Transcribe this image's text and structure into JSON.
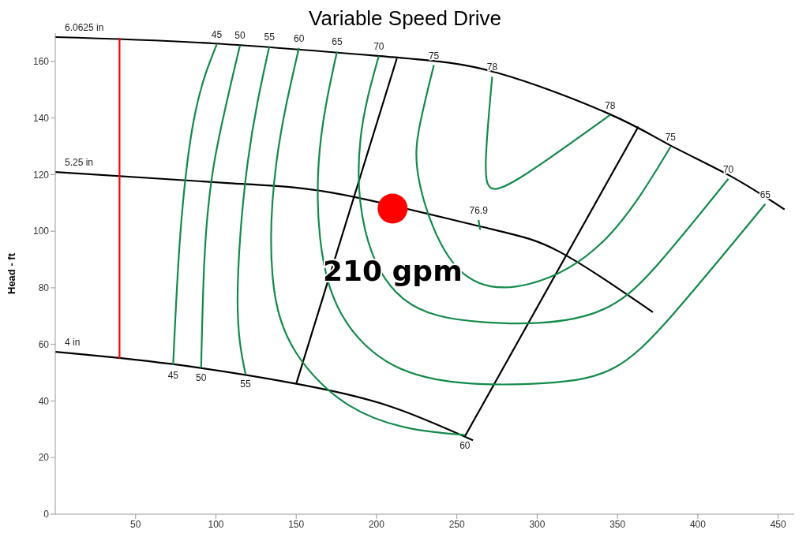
{
  "chart_data": {
    "type": "line",
    "title": "Variable Speed Drive",
    "ylabel": "Head - ft",
    "xlim": [
      0,
      460
    ],
    "ylim": [
      0,
      170
    ],
    "xticks": [
      50,
      100,
      150,
      200,
      250,
      300,
      350,
      400,
      450
    ],
    "yticks": [
      0,
      20,
      40,
      60,
      80,
      100,
      120,
      140,
      160
    ],
    "grid": false,
    "legend": false,
    "marker": "none",
    "line_style": "solid",
    "series": [
      {
        "color": "#000000",
        "x": [
          0,
          100,
          208,
          275,
          345,
          382,
          420,
          454
        ],
        "values": [
          168.6,
          166.3,
          161.6,
          156,
          141.4,
          130.6,
          119.6,
          107.7
        ]
      },
      {
        "color": "#000000",
        "x": [
          0,
          111,
          179,
          266,
          314,
          372
        ],
        "values": [
          120.9,
          116.9,
          112.9,
          101.5,
          92.7,
          71.4
        ]
      },
      {
        "color": "#000000",
        "x": [
          0,
          72,
          150,
          208,
          260
        ],
        "values": [
          57.4,
          53.1,
          46.1,
          38.2,
          26.1
        ]
      },
      {
        "color": "#ff0000",
        "x": [
          40,
          40
        ],
        "values": [
          55,
          168.3
        ]
      },
      {
        "color": "#000000",
        "x": [
          150,
          212.6
        ],
        "values": [
          46.1,
          161
        ]
      },
      {
        "color": "#000000",
        "x": [
          255,
          363
        ],
        "values": [
          27.5,
          137
        ]
      },
      {
        "color": "#138a4a",
        "x": [
          100.5,
          87,
          78,
          73.4
        ],
        "values": [
          166,
          141.5,
          100,
          52.8
        ]
      },
      {
        "color": "#138a4a",
        "x": [
          115,
          99,
          92.8,
          90.8
        ],
        "values": [
          165.7,
          124.4,
          89.4,
          51.7
        ]
      },
      {
        "color": "#138a4a",
        "x": [
          133.3,
          119.8,
          113.5,
          118.4
        ],
        "values": [
          165.4,
          124.4,
          76,
          49.6
        ]
      },
      {
        "color": "#138a4a",
        "x": [
          151.7,
          137.7,
          135.3,
          150,
          183.6,
          222,
          255
        ],
        "values": [
          164.8,
          124.4,
          84,
          57,
          38.2,
          30.2,
          28
        ]
      },
      {
        "color": "#138a4a",
        "x": [
          175.4,
          164,
          169,
          193,
          236.7,
          304,
          347.8,
          384.5,
          442
        ],
        "values": [
          163.5,
          124.4,
          84,
          59.8,
          47.7,
          46.3,
          51.7,
          70.6,
          109.6
        ]
      },
      {
        "color": "#138a4a",
        "x": [
          201.4,
          190,
          193,
          217,
          265.7,
          333,
          376.8,
          419
        ],
        "values": [
          161.9,
          132.5,
          100.2,
          76,
          67.9,
          70.6,
          89.4,
          118.5
        ]
      },
      {
        "color": "#138a4a",
        "x": [
          235.7,
          227,
          227,
          251,
          294.7,
          343,
          383
        ],
        "values": [
          158.7,
          137.7,
          116.4,
          86.7,
          81.3,
          97.5,
          129.8
        ]
      },
      {
        "color": "#138a4a",
        "x": [
          272,
          268,
          275,
          304,
          345.4
        ],
        "values": [
          154.6,
          124.4,
          115,
          124.4,
          141.1
        ]
      },
      {
        "color": "#138a4a",
        "x": [
          263.5,
          264.5
        ],
        "values": [
          104,
          100.5
        ]
      },
      {
        "type": "scatter",
        "color": "#ff0000",
        "marker": "circle",
        "x": [
          210
        ],
        "values": [
          108
        ]
      }
    ],
    "annotations": [
      {
        "text": "210 gpm",
        "x": 210,
        "y": 108
      },
      {
        "text": "6.0625 in",
        "x": 0,
        "y": 168.6
      },
      {
        "text": "5.25 in",
        "x": 0,
        "y": 120.9
      },
      {
        "text": "4 in",
        "x": 0,
        "y": 57.4
      },
      {
        "text": "45",
        "x": 100.5,
        "y": 166
      },
      {
        "text": "50",
        "x": 115,
        "y": 165.7
      },
      {
        "text": "55",
        "x": 133.3,
        "y": 165.4
      },
      {
        "text": "60",
        "x": 151.7,
        "y": 164.8
      },
      {
        "text": "65",
        "x": 175.4,
        "y": 163.5
      },
      {
        "text": "70",
        "x": 201.4,
        "y": 161.9
      },
      {
        "text": "75",
        "x": 235.7,
        "y": 158.7
      },
      {
        "text": "78",
        "x": 272,
        "y": 154.6
      },
      {
        "text": "78",
        "x": 345.4,
        "y": 141.1
      },
      {
        "text": "75",
        "x": 383,
        "y": 129.8
      },
      {
        "text": "70",
        "x": 419,
        "y": 118.5
      },
      {
        "text": "65",
        "x": 442,
        "y": 109.6
      },
      {
        "text": "45",
        "x": 73.4,
        "y": 52.8
      },
      {
        "text": "50",
        "x": 90.8,
        "y": 51.7
      },
      {
        "text": "55",
        "x": 118.4,
        "y": 49.6
      },
      {
        "text": "60",
        "x": 255,
        "y": 28
      },
      {
        "text": "76.9",
        "x": 263.5,
        "y": 104
      }
    ]
  }
}
